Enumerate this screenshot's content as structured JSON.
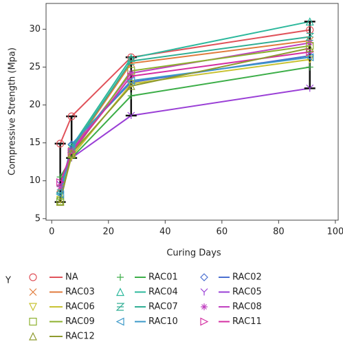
{
  "chart_data": {
    "type": "line",
    "y_label": "Compressive Strength (Mpa)",
    "x_label": "Curing Days",
    "legend_title": "Y",
    "x": [
      3,
      7,
      28,
      91
    ],
    "xlim": [
      -2,
      101
    ],
    "xticks": [
      0,
      20,
      40,
      60,
      80,
      100
    ],
    "ylim": [
      4.8,
      33.4
    ],
    "yticks": [
      5,
      10,
      15,
      20,
      25,
      30
    ],
    "error_bars": true,
    "series": [
      {
        "name": "NA",
        "color": "#e0525a",
        "marker": "circle",
        "values": [
          14.9,
          18.5,
          26.3,
          29.9
        ]
      },
      {
        "name": "RAC01",
        "color": "#3cae48",
        "marker": "plus",
        "values": [
          10.5,
          13.0,
          21.2,
          25.0
        ]
      },
      {
        "name": "RAC02",
        "color": "#4a6fd0",
        "marker": "diamond",
        "values": [
          8.5,
          14.8,
          23.0,
          26.5
        ]
      },
      {
        "name": "RAC03",
        "color": "#e07b3c",
        "marker": "x",
        "values": [
          9.0,
          14.0,
          25.5,
          28.5
        ]
      },
      {
        "name": "RAC04",
        "color": "#2cb89c",
        "marker": "tri-up",
        "values": [
          8.0,
          14.5,
          26.2,
          31.0
        ]
      },
      {
        "name": "RAC05",
        "color": "#9a3fd6",
        "marker": "y",
        "values": [
          9.5,
          13.0,
          18.6,
          22.2
        ]
      },
      {
        "name": "RAC06",
        "color": "#c8c232",
        "marker": "tri-down",
        "values": [
          7.5,
          13.2,
          22.8,
          26.0
        ]
      },
      {
        "name": "RAC07",
        "color": "#30ae94",
        "marker": "z",
        "values": [
          8.8,
          14.2,
          25.8,
          29.0
        ]
      },
      {
        "name": "RAC08",
        "color": "#c040c0",
        "marker": "star",
        "values": [
          9.2,
          14.0,
          24.2,
          28.2
        ]
      },
      {
        "name": "RAC09",
        "color": "#8cb02e",
        "marker": "square",
        "values": [
          7.3,
          13.5,
          24.5,
          27.8
        ]
      },
      {
        "name": "RAC10",
        "color": "#3a98c8",
        "marker": "tri-left",
        "values": [
          8.2,
          14.8,
          23.2,
          26.3
        ]
      },
      {
        "name": "RAC11",
        "color": "#d42fa2",
        "marker": "tri-right",
        "values": [
          9.8,
          13.8,
          23.8,
          27.0
        ]
      },
      {
        "name": "RAC12",
        "color": "#8e9a2e",
        "marker": "tri-up-open",
        "values": [
          7.2,
          13.6,
          22.5,
          27.5
        ]
      }
    ]
  }
}
